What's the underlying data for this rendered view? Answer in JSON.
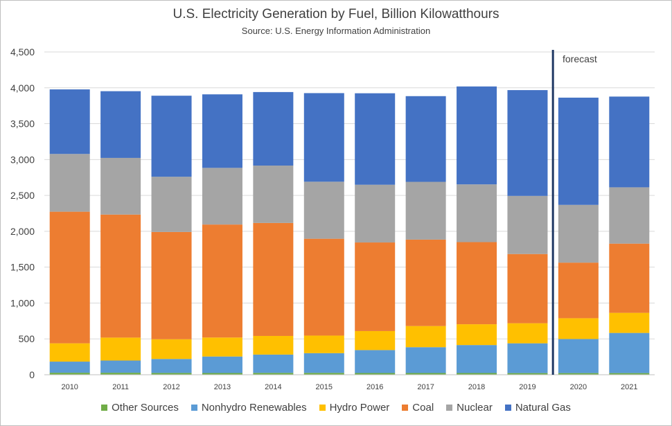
{
  "chart_data": {
    "type": "bar",
    "stacked": true,
    "title": "U.S. Electricity Generation by Fuel, Billion Kilowatthours",
    "subtitle": "Source: U.S. Energy Information Administration",
    "xlabel": "",
    "ylabel": "",
    "ylim": [
      0,
      4500
    ],
    "yticks": [
      0,
      500,
      1000,
      1500,
      2000,
      2500,
      3000,
      3500,
      4000,
      4500
    ],
    "ytick_labels": [
      "0",
      "500",
      "1,000",
      "1,500",
      "2,000",
      "2,500",
      "3,000",
      "3,500",
      "4,000",
      "4,500"
    ],
    "categories": [
      "2010",
      "2011",
      "2012",
      "2013",
      "2014",
      "2015",
      "2016",
      "2017",
      "2018",
      "2019",
      "2020",
      "2021"
    ],
    "series": [
      {
        "name": "Other Sources",
        "color": "#70ad47",
        "values": [
          28,
          28,
          25,
          24,
          26,
          26,
          24,
          24,
          24,
          23,
          23,
          23
        ]
      },
      {
        "name": "Nonhydro Renewables",
        "color": "#5b9bd5",
        "values": [
          155,
          170,
          195,
          230,
          255,
          275,
          320,
          360,
          390,
          415,
          475,
          560
        ]
      },
      {
        "name": "Hydro Power",
        "color": "#ffc000",
        "values": [
          255,
          320,
          275,
          265,
          260,
          245,
          265,
          295,
          290,
          280,
          290,
          280
        ]
      },
      {
        "name": "Coal",
        "color": "#ed7d31",
        "values": [
          1835,
          1715,
          1495,
          1575,
          1575,
          1350,
          1235,
          1205,
          1145,
          965,
          775,
          965
        ]
      },
      {
        "name": "Nuclear",
        "color": "#a5a5a5",
        "values": [
          805,
          790,
          770,
          790,
          800,
          795,
          805,
          805,
          805,
          810,
          805,
          785
        ]
      },
      {
        "name": "Natural Gas",
        "color": "#4472c4",
        "values": [
          900,
          930,
          1130,
          1025,
          1025,
          1235,
          1275,
          1195,
          1365,
          1475,
          1495,
          1265
        ]
      }
    ],
    "legend_position": "bottom",
    "grid": true,
    "forecast_label": "forecast",
    "forecast_after": "2019"
  }
}
